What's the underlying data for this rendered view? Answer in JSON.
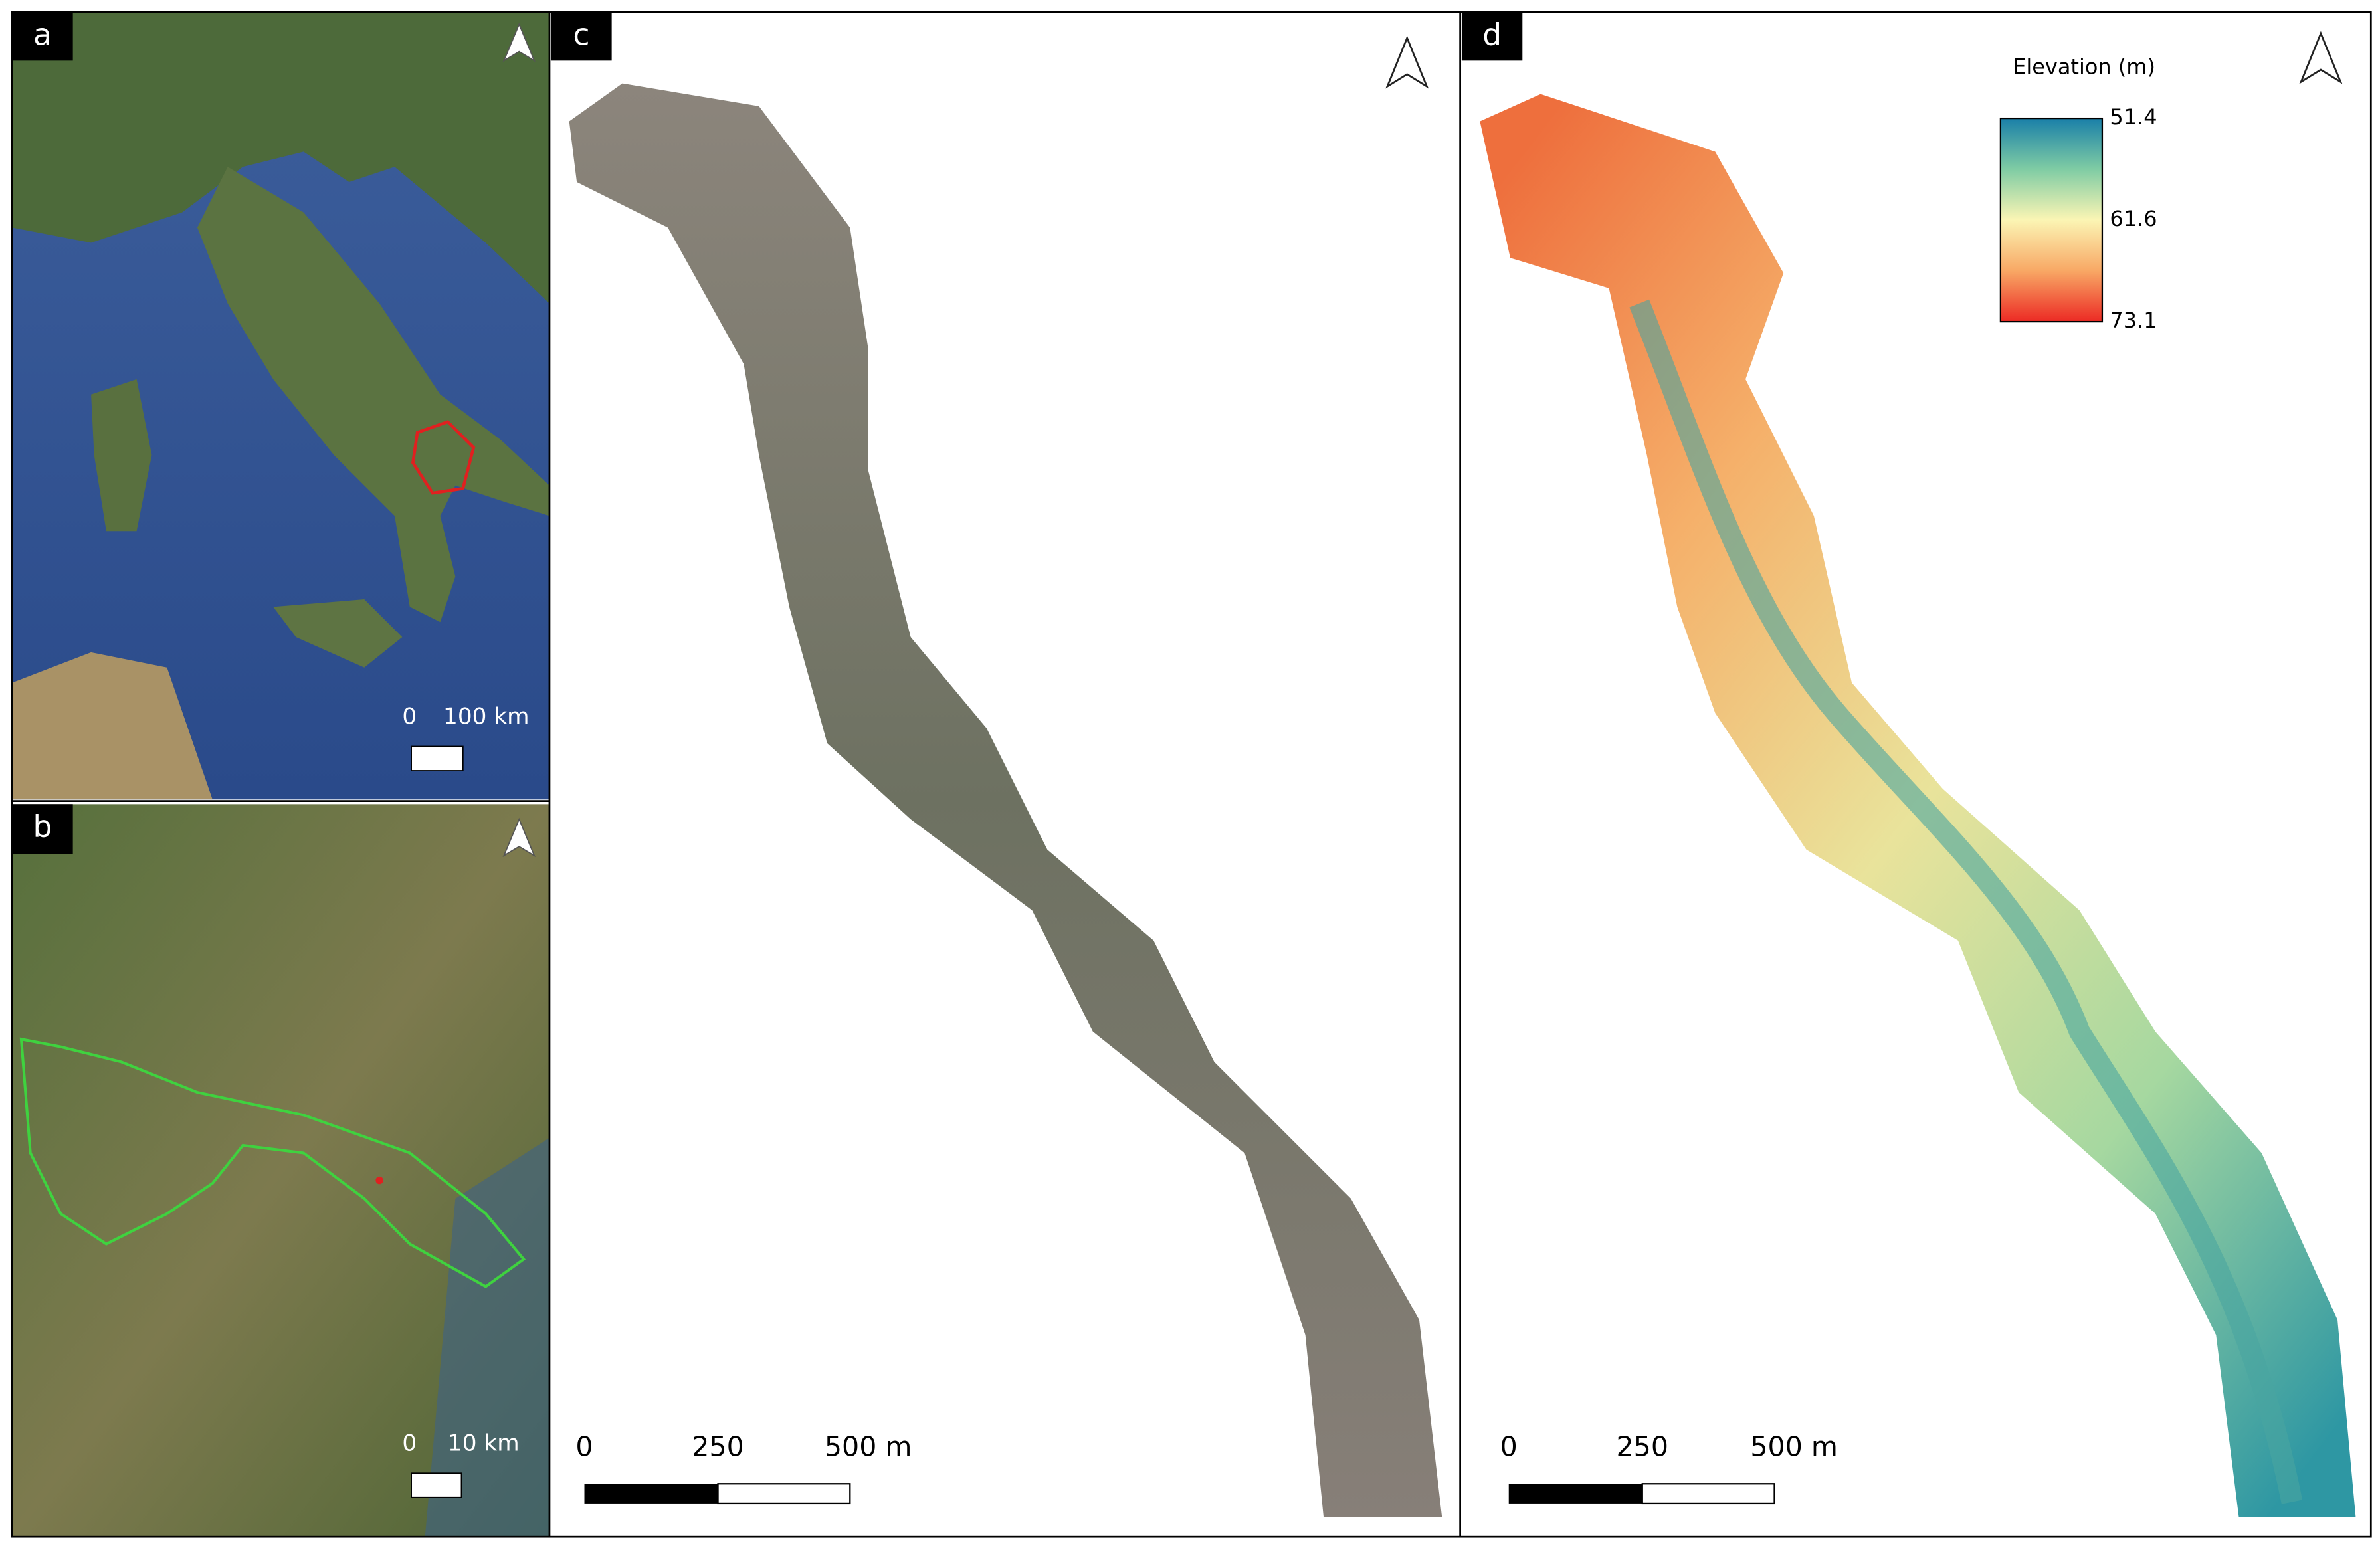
{
  "panels": [
    {
      "label": "a",
      "scale_labels": [
        "0",
        "100 km"
      ]
    },
    {
      "label": "b",
      "scale_labels": [
        "0",
        "10 km"
      ]
    },
    {
      "label": "c",
      "scale_labels": [
        "0",
        "250",
        "500 m"
      ]
    },
    {
      "label": "d",
      "scale_labels": [
        "0",
        "250",
        "500 m"
      ]
    }
  ],
  "legend": {
    "title": "Elevation (m)",
    "ticks": [
      "51.4",
      "61.6",
      "73.1"
    ]
  }
}
